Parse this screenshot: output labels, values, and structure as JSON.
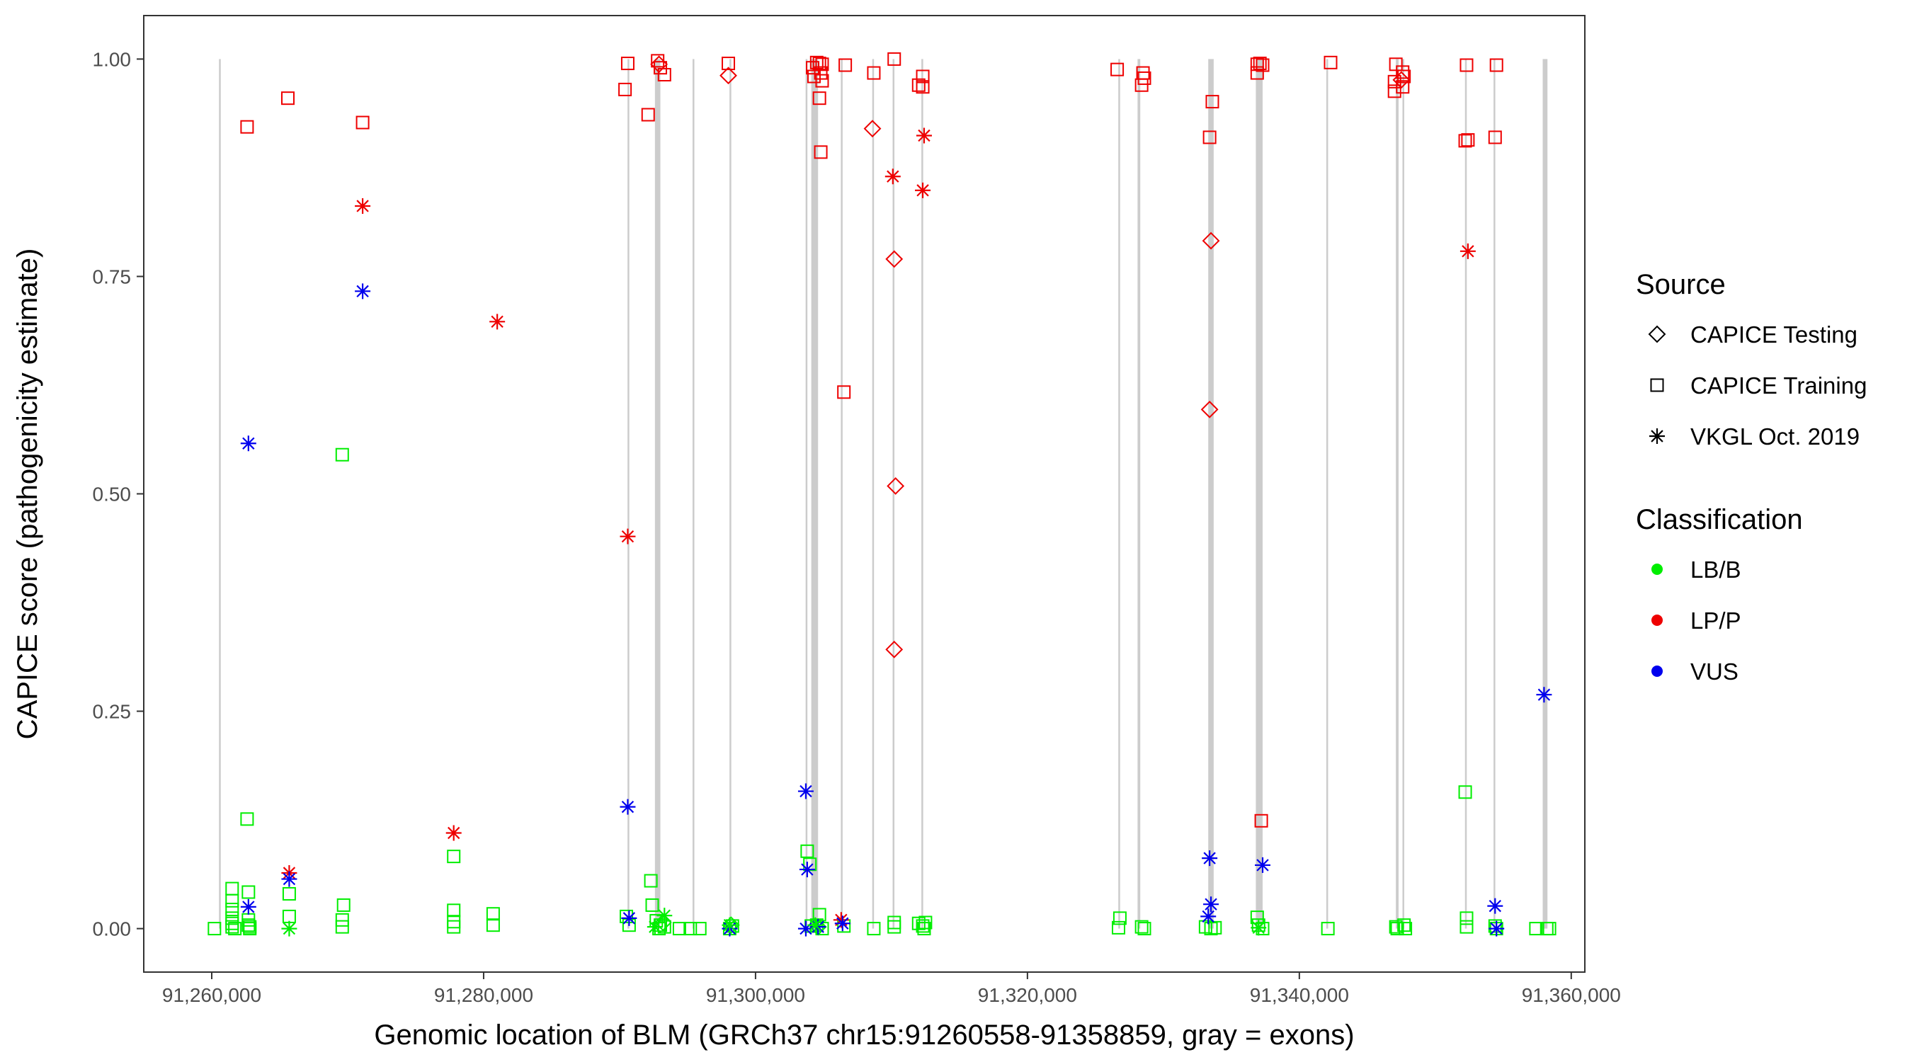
{
  "chart_data": {
    "type": "scatter",
    "xlabel": "Genomic location of BLM (GRCh37 chr15:91260558-91358859, gray = exons)",
    "ylabel": "CAPICE score (pathogenicity estimate)",
    "xlim": [
      91255000,
      91361000
    ],
    "ylim": [
      -0.05,
      1.05
    ],
    "x_ticks": [
      91260000,
      91280000,
      91300000,
      91320000,
      91340000,
      91360000
    ],
    "x_tick_labels": [
      "91,260,000",
      "91,280,000",
      "91,300,000",
      "91,320,000",
      "91,340,000",
      "91,360,000"
    ],
    "y_ticks": [
      0,
      0.25,
      0.5,
      0.75,
      1
    ],
    "y_tick_labels": [
      "0.00",
      "0.25",
      "0.50",
      "0.75",
      "1.00"
    ],
    "grid": false,
    "legend_position": "right",
    "legends": [
      {
        "title": "Source",
        "entries": [
          {
            "label": "CAPICE Testing",
            "shape": "diamond"
          },
          {
            "label": "CAPICE Training",
            "shape": "square"
          },
          {
            "label": "VKGL Oct. 2019",
            "shape": "asterisk"
          }
        ]
      },
      {
        "title": "Classification",
        "entries": [
          {
            "label": "LB/B",
            "color": "#00ee00"
          },
          {
            "label": "LP/P",
            "color": "#ee0000"
          },
          {
            "label": "VUS",
            "color": "#0000ee"
          }
        ]
      }
    ],
    "exon_color": "#cccccc",
    "exons": [
      [
        91260558,
        91260640
      ],
      [
        91290600,
        91290700
      ],
      [
        91292600,
        91293000
      ],
      [
        91295400,
        91295470
      ],
      [
        91298100,
        91298200
      ],
      [
        91303700,
        91303800
      ],
      [
        91304100,
        91304600
      ],
      [
        91306300,
        91306380
      ],
      [
        91308600,
        91308700
      ],
      [
        91310100,
        91310200
      ],
      [
        91312200,
        91312330
      ],
      [
        91326700,
        91326800
      ],
      [
        91328100,
        91328300
      ],
      [
        91333300,
        91333700
      ],
      [
        91336800,
        91337300
      ],
      [
        91342000,
        91342100
      ],
      [
        91347100,
        91347300
      ],
      [
        91347600,
        91347700
      ],
      [
        91352200,
        91352300
      ],
      [
        91354300,
        91354400
      ],
      [
        91357900,
        91358250
      ]
    ],
    "series": [
      {
        "source": "CAPICE Training",
        "classification": "LP/P",
        "points": [
          [
            91262600,
            0.922
          ],
          [
            91265600,
            0.955
          ],
          [
            91271100,
            0.927
          ],
          [
            91290600,
            0.995
          ],
          [
            91290400,
            0.965
          ],
          [
            91292100,
            0.936
          ],
          [
            91292800,
            0.998
          ],
          [
            91293000,
            0.99
          ],
          [
            91293300,
            0.982
          ],
          [
            91298000,
            0.995
          ],
          [
            91304200,
            0.99
          ],
          [
            91304300,
            0.98
          ],
          [
            91304500,
            0.996
          ],
          [
            91304700,
            0.995
          ],
          [
            91304900,
            0.994
          ],
          [
            91304800,
            0.984
          ],
          [
            91304900,
            0.975
          ],
          [
            91304700,
            0.955
          ],
          [
            91304800,
            0.893
          ],
          [
            91306600,
            0.993
          ],
          [
            91308700,
            0.984
          ],
          [
            91310200,
            1.0
          ],
          [
            91312000,
            0.97
          ],
          [
            91312300,
            0.98
          ],
          [
            91312300,
            0.968
          ],
          [
            91306500,
            0.617
          ],
          [
            91326600,
            0.988
          ],
          [
            91328500,
            0.984
          ],
          [
            91328600,
            0.978
          ],
          [
            91328400,
            0.97
          ],
          [
            91333600,
            0.951
          ],
          [
            91333400,
            0.91
          ],
          [
            91336900,
            0.994
          ],
          [
            91337100,
            0.995
          ],
          [
            91337300,
            0.993
          ],
          [
            91336900,
            0.984
          ],
          [
            91342300,
            0.996
          ],
          [
            91337200,
            0.124
          ],
          [
            91347100,
            0.994
          ],
          [
            91347000,
            0.974
          ],
          [
            91347000,
            0.963
          ],
          [
            91347600,
            0.985
          ],
          [
            91347700,
            0.98
          ],
          [
            91347600,
            0.968
          ],
          [
            91352300,
            0.993
          ],
          [
            91352400,
            0.907
          ],
          [
            91352200,
            0.906
          ],
          [
            91354500,
            0.993
          ],
          [
            91354400,
            0.91
          ]
        ]
      },
      {
        "source": "CAPICE Training",
        "classification": "LB/B",
        "points": [
          [
            91260200,
            0.0
          ],
          [
            91261500,
            0.046
          ],
          [
            91261500,
            0.032
          ],
          [
            91261500,
            0.022
          ],
          [
            91261500,
            0.012
          ],
          [
            91261500,
            0.006
          ],
          [
            91261500,
            0.002
          ],
          [
            91261700,
            0.0
          ],
          [
            91262600,
            0.126
          ],
          [
            91262700,
            0.042
          ],
          [
            91262700,
            0.01
          ],
          [
            91262700,
            0.004
          ],
          [
            91262800,
            0.002
          ],
          [
            91262800,
            0.0
          ],
          [
            91265700,
            0.04
          ],
          [
            91265700,
            0.014
          ],
          [
            91269600,
            0.545
          ],
          [
            91269700,
            0.027
          ],
          [
            91269600,
            0.01
          ],
          [
            91269600,
            0.002
          ],
          [
            91277800,
            0.083
          ],
          [
            91277800,
            0.021
          ],
          [
            91277800,
            0.008
          ],
          [
            91277800,
            0.002
          ],
          [
            91280700,
            0.017
          ],
          [
            91280700,
            0.004
          ],
          [
            91290500,
            0.014
          ],
          [
            91290700,
            0.004
          ],
          [
            91292300,
            0.055
          ],
          [
            91292400,
            0.027
          ],
          [
            91292700,
            0.009
          ],
          [
            91293000,
            0.004
          ],
          [
            91292900,
            0.0
          ],
          [
            91293300,
            0.002
          ],
          [
            91294400,
            0.0
          ],
          [
            91295200,
            0.0
          ],
          [
            91295900,
            0.0
          ],
          [
            91298300,
            0.003
          ],
          [
            91298100,
            0.0
          ],
          [
            91303800,
            0.089
          ],
          [
            91304000,
            0.074
          ],
          [
            91304100,
            0.003
          ],
          [
            91304700,
            0.016
          ],
          [
            91304500,
            0.004
          ],
          [
            91304900,
            0.0
          ],
          [
            91306500,
            0.003
          ],
          [
            91308700,
            0.0
          ],
          [
            91310200,
            0.007
          ],
          [
            91310200,
            0.002
          ],
          [
            91312000,
            0.006
          ],
          [
            91312300,
            0.003
          ],
          [
            91312500,
            0.007
          ],
          [
            91312400,
            0.0
          ],
          [
            91326800,
            0.012
          ],
          [
            91326700,
            0.001
          ],
          [
            91328400,
            0.002
          ],
          [
            91328600,
            0.0
          ],
          [
            91333100,
            0.002
          ],
          [
            91333500,
            0.0
          ],
          [
            91333800,
            0.001
          ],
          [
            91336900,
            0.013
          ],
          [
            91337000,
            0.004
          ],
          [
            91337300,
            0.0
          ],
          [
            91342100,
            0.0
          ],
          [
            91347100,
            0.002
          ],
          [
            91347200,
            0.0
          ],
          [
            91347700,
            0.004
          ],
          [
            91347800,
            0.0
          ],
          [
            91352200,
            0.157
          ],
          [
            91352300,
            0.012
          ],
          [
            91352300,
            0.002
          ],
          [
            91354400,
            0.003
          ],
          [
            91354500,
            0.0
          ],
          [
            91357400,
            0.0
          ],
          [
            91358200,
            0.0
          ],
          [
            91358400,
            0.0
          ]
        ]
      },
      {
        "source": "CAPICE Testing",
        "classification": "LP/P",
        "points": [
          [
            91292900,
            0.994
          ],
          [
            91298000,
            0.981
          ],
          [
            91308600,
            0.92
          ],
          [
            91310200,
            0.77
          ],
          [
            91310300,
            0.509
          ],
          [
            91310200,
            0.321
          ],
          [
            91333500,
            0.791
          ],
          [
            91333400,
            0.597
          ],
          [
            91347500,
            0.976
          ]
        ]
      },
      {
        "source": "CAPICE Testing",
        "classification": "LB/B",
        "points": [
          [
            91293200,
            0.007
          ],
          [
            91298200,
            0.004
          ],
          [
            91304600,
            0.002
          ]
        ]
      },
      {
        "source": "VKGL Oct. 2019",
        "classification": "LP/P",
        "points": [
          [
            91265700,
            0.064
          ],
          [
            91271100,
            0.831
          ],
          [
            91277800,
            0.11
          ],
          [
            91281000,
            0.698
          ],
          [
            91290600,
            0.451
          ],
          [
            91306300,
            0.01
          ],
          [
            91310100,
            0.865
          ],
          [
            91312400,
            0.912
          ],
          [
            91312300,
            0.849
          ],
          [
            91352400,
            0.779
          ]
        ]
      },
      {
        "source": "VKGL Oct. 2019",
        "classification": "VUS",
        "points": [
          [
            91262700,
            0.558
          ],
          [
            91262700,
            0.025
          ],
          [
            91265700,
            0.057
          ],
          [
            91271100,
            0.733
          ],
          [
            91290600,
            0.14
          ],
          [
            91290700,
            0.012
          ],
          [
            91303700,
            0.158
          ],
          [
            91303800,
            0.068
          ],
          [
            91303700,
            0.0
          ],
          [
            91304600,
            0.002
          ],
          [
            91306400,
            0.006
          ],
          [
            91298100,
            0.0
          ],
          [
            91333400,
            0.081
          ],
          [
            91333500,
            0.028
          ],
          [
            91333300,
            0.014
          ],
          [
            91337300,
            0.073
          ],
          [
            91354400,
            0.026
          ],
          [
            91354500,
            0.0
          ],
          [
            91358000,
            0.269
          ]
        ]
      },
      {
        "source": "VKGL Oct. 2019",
        "classification": "LB/B",
        "points": [
          [
            91265700,
            0.0
          ],
          [
            91293300,
            0.015
          ],
          [
            91292600,
            0.002
          ],
          [
            91298100,
            0.004
          ],
          [
            91304400,
            0.004
          ],
          [
            91337000,
            0.001
          ]
        ]
      }
    ]
  }
}
